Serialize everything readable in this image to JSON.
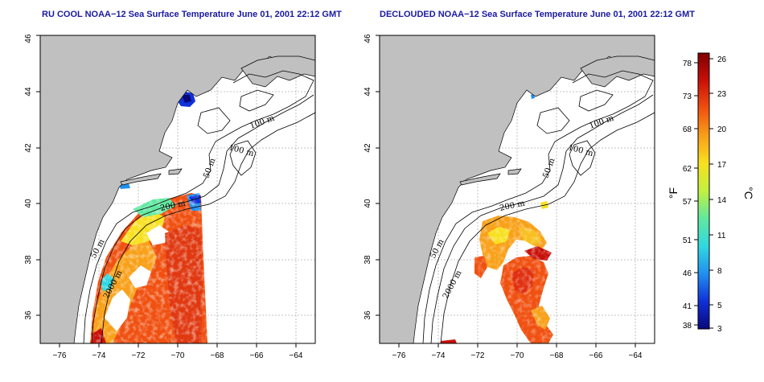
{
  "panels": [
    {
      "title": "RU COOL NOAA−12 Sea Surface Temperature June 01, 2001 22:12 GMT",
      "contour_labels": [
        "100 m",
        "100 m",
        "50 m",
        "200 m",
        "50 m",
        "2000 m"
      ]
    },
    {
      "title": "DECLOUDED NOAA−12 Sea Surface Temperature June 01, 2001 22:12 GMT",
      "contour_labels": [
        "100 m",
        "100 m",
        "50 m",
        "200 m",
        "50 m",
        "2000 m"
      ]
    }
  ],
  "axes": {
    "lon_ticks": [
      "−76",
      "−74",
      "−72",
      "−70",
      "−68",
      "−66",
      "−64"
    ],
    "lat_ticks": [
      "36",
      "38",
      "40",
      "42",
      "44",
      "46"
    ],
    "lon_range": [
      -77,
      -63
    ],
    "lat_range": [
      35,
      46
    ]
  },
  "colorbar": {
    "fahrenheit_label": "°F",
    "celsius_label": "°C",
    "fahrenheit_ticks": [
      "78",
      "73",
      "68",
      "62",
      "57",
      "51",
      "46",
      "41",
      "38"
    ],
    "celsius_ticks": [
      "26",
      "23",
      "20",
      "17",
      "14",
      "11",
      "8",
      "5",
      "3"
    ],
    "colors": [
      "#08087a",
      "#1030d8",
      "#2090f0",
      "#30d8e0",
      "#60e8a0",
      "#c0f040",
      "#f8e020",
      "#f8a018",
      "#f05010",
      "#c81008",
      "#800000"
    ]
  },
  "colors": {
    "land": "#c0c0c0",
    "ocean": "#ffffff",
    "grid": "#b0b0b0",
    "title": "#1a1aa0"
  }
}
